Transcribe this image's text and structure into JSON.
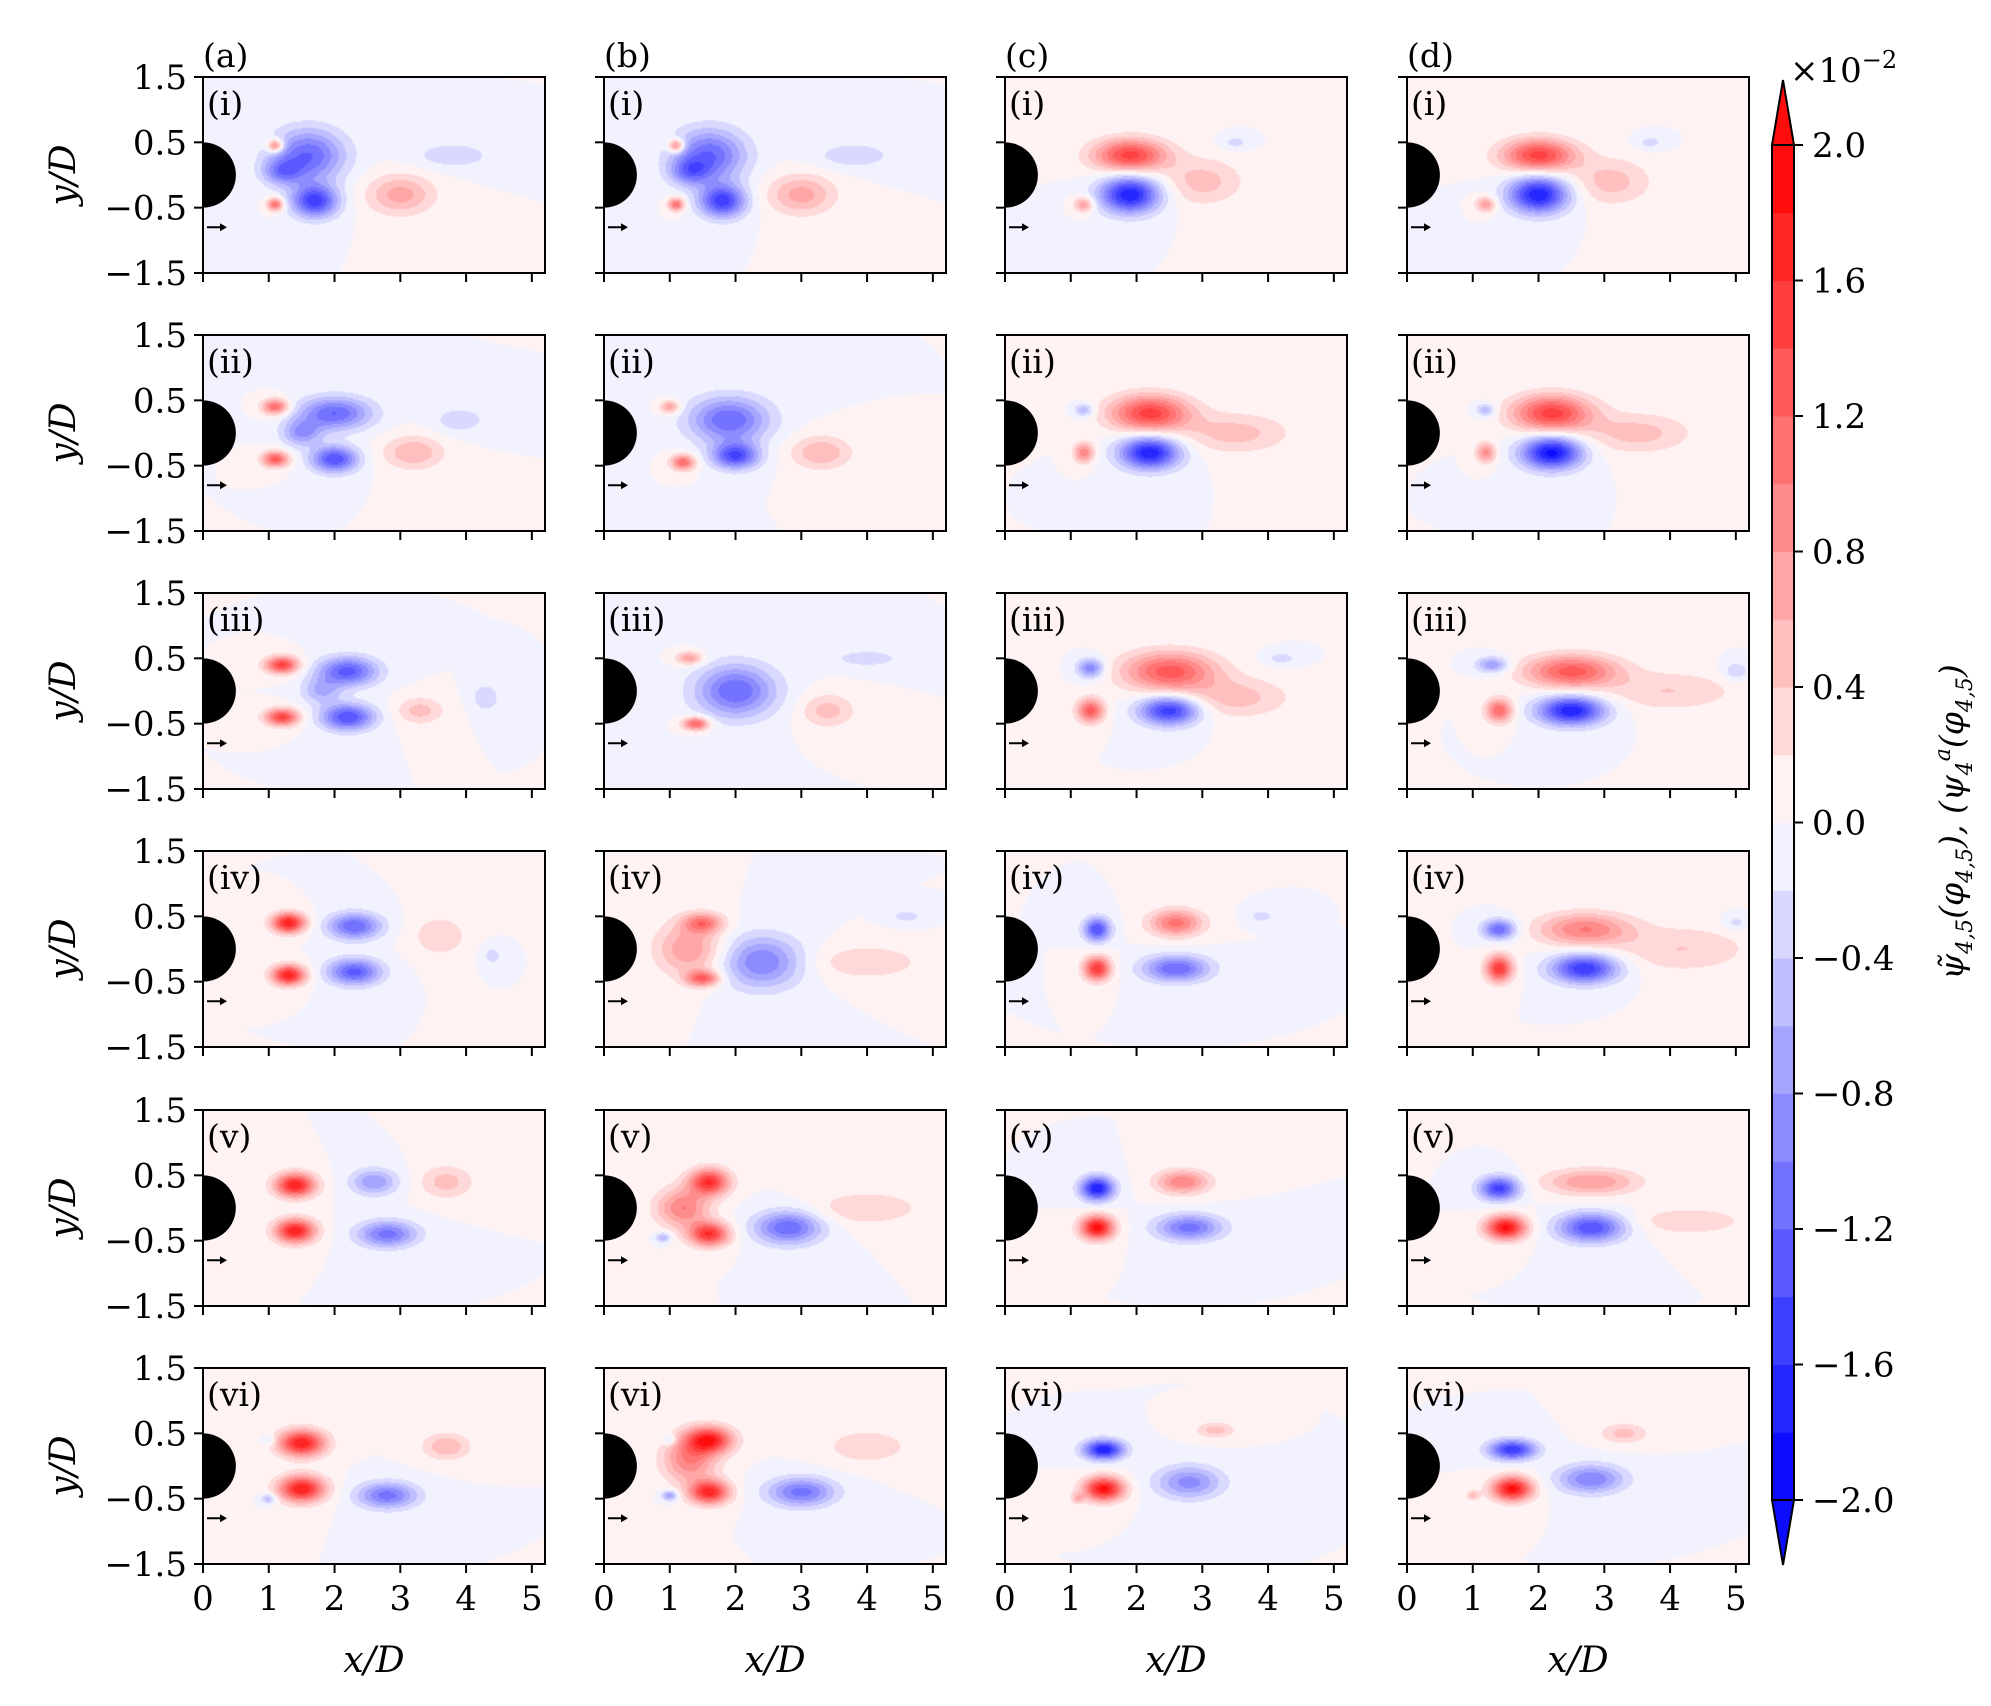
{
  "chart_data": {
    "type": "contour",
    "layout": "6 rows x 4 columns of filled-contour panels",
    "xlabel": "x/D",
    "ylabel": "y/D",
    "xlim": [
      0,
      5.2
    ],
    "ylim": [
      -1.5,
      1.5
    ],
    "xticks": [
      "0",
      "1",
      "2",
      "3",
      "4",
      "5"
    ],
    "yticks": [
      "1.5",
      "0.5",
      "−0.5",
      "−1.5"
    ],
    "column_labels": [
      "(a)",
      "(b)",
      "(c)",
      "(d)"
    ],
    "row_labels": [
      "(i)",
      "(ii)",
      "(iii)",
      "(iv)",
      "(v)",
      "(vi)"
    ],
    "cylinder": {
      "center_x": 0,
      "center_y": 0,
      "radius": 0.5
    },
    "colorbar": {
      "label": "ψ̃_{4,5}(φ_{4,5}),  (ψ_4)^a(φ_{4,5})",
      "label_left": "ψ̃",
      "label_sub": "4,5",
      "label_rest": "(φ",
      "label_rest_sub": "4,5",
      "label_mid": "),  (ψ",
      "label_mid_sub": "4",
      "label_mid_sup": "a",
      "label_end": "(φ",
      "label_end_sub": "4,5",
      "label_close": ")",
      "multiplier_base": "×10",
      "multiplier_exp": "−2",
      "ticks": [
        "2.0",
        "1.6",
        "1.2",
        "0.8",
        "0.4",
        "0.0",
        "−0.4",
        "−0.8",
        "−1.2",
        "−1.6",
        "−2.0"
      ],
      "range": [
        -2.0,
        2.0
      ],
      "extend": "both",
      "low_color": "#0000ff",
      "mid_color": "#ffffff",
      "high_color": "#ff0000"
    },
    "approximate_structures_note": "Each blob: x, y in D; amplitude in colorbar units (x10^-2); rx, ry in D.",
    "panels": [
      [
        [
          [
            1.1,
            0.45,
            1.2,
            0.12,
            0.1
          ],
          [
            1.1,
            -0.45,
            1.2,
            0.12,
            0.1
          ],
          [
            1.6,
            0.3,
            -1.2,
            0.55,
            0.4
          ],
          [
            1.7,
            -0.4,
            -1.5,
            0.35,
            0.25
          ],
          [
            1.2,
            0.05,
            -0.8,
            0.3,
            0.2
          ],
          [
            3.0,
            -0.3,
            0.7,
            0.5,
            0.3
          ],
          [
            3.8,
            0.3,
            -0.35,
            0.6,
            0.2
          ]
        ],
        [
          [
            1.1,
            0.45,
            1.2,
            0.12,
            0.1
          ],
          [
            1.1,
            -0.45,
            1.2,
            0.12,
            0.1
          ],
          [
            1.6,
            0.3,
            -1.2,
            0.55,
            0.4
          ],
          [
            1.8,
            -0.4,
            -1.5,
            0.35,
            0.25
          ],
          [
            1.3,
            0.05,
            -0.8,
            0.3,
            0.2
          ],
          [
            3.0,
            -0.3,
            0.7,
            0.5,
            0.3
          ],
          [
            3.8,
            0.3,
            -0.35,
            0.6,
            0.2
          ]
        ],
        [
          [
            1.2,
            -0.45,
            0.8,
            0.15,
            0.12
          ],
          [
            1.9,
            0.3,
            1.5,
            0.55,
            0.25
          ],
          [
            1.9,
            -0.3,
            -1.8,
            0.45,
            0.28
          ],
          [
            3.0,
            -0.1,
            0.5,
            0.6,
            0.35
          ],
          [
            3.5,
            0.5,
            -0.3,
            0.2,
            0.1
          ]
        ],
        [
          [
            1.2,
            -0.45,
            0.8,
            0.15,
            0.12
          ],
          [
            2.0,
            0.3,
            1.5,
            0.55,
            0.25
          ],
          [
            2.0,
            -0.3,
            -1.8,
            0.45,
            0.28
          ],
          [
            3.1,
            -0.1,
            0.5,
            0.6,
            0.35
          ],
          [
            3.7,
            0.5,
            -0.3,
            0.2,
            0.1
          ]
        ]
      ],
      [
        [
          [
            1.1,
            0.4,
            1.2,
            0.2,
            0.12
          ],
          [
            1.1,
            -0.4,
            1.3,
            0.2,
            0.12
          ],
          [
            2.0,
            0.3,
            -1.2,
            0.55,
            0.25
          ],
          [
            2.0,
            -0.4,
            -1.4,
            0.35,
            0.2
          ],
          [
            1.5,
            0.0,
            -0.8,
            0.3,
            0.2
          ],
          [
            3.2,
            -0.3,
            0.6,
            0.45,
            0.25
          ],
          [
            3.9,
            0.2,
            -0.35,
            0.4,
            0.2
          ]
        ],
        [
          [
            1.0,
            0.4,
            0.8,
            0.15,
            0.1
          ],
          [
            1.2,
            -0.45,
            1.2,
            0.18,
            0.12
          ],
          [
            1.9,
            0.2,
            -1.2,
            0.6,
            0.35
          ],
          [
            2.0,
            -0.35,
            -1.4,
            0.35,
            0.2
          ],
          [
            3.3,
            -0.3,
            0.6,
            0.45,
            0.25
          ]
        ],
        [
          [
            1.2,
            -0.3,
            1.0,
            0.15,
            0.15
          ],
          [
            1.2,
            0.35,
            -0.6,
            0.15,
            0.1
          ],
          [
            2.2,
            0.3,
            1.5,
            0.6,
            0.28
          ],
          [
            2.2,
            -0.3,
            -1.8,
            0.45,
            0.25
          ],
          [
            3.5,
            0.0,
            0.5,
            0.8,
            0.3
          ]
        ],
        [
          [
            1.2,
            -0.3,
            0.9,
            0.15,
            0.15
          ],
          [
            1.2,
            0.35,
            -0.6,
            0.15,
            0.1
          ],
          [
            2.2,
            0.3,
            1.5,
            0.6,
            0.28
          ],
          [
            2.2,
            -0.3,
            -1.9,
            0.45,
            0.25
          ],
          [
            3.5,
            0.0,
            0.5,
            0.8,
            0.3
          ]
        ]
      ],
      [
        [
          [
            1.2,
            0.4,
            1.5,
            0.25,
            0.13
          ],
          [
            1.2,
            -0.4,
            1.5,
            0.25,
            0.13
          ],
          [
            2.2,
            0.3,
            -1.3,
            0.45,
            0.22
          ],
          [
            2.2,
            -0.4,
            -1.4,
            0.4,
            0.2
          ],
          [
            1.8,
            0.0,
            -0.6,
            0.3,
            0.2
          ],
          [
            3.3,
            -0.3,
            0.5,
            0.35,
            0.2
          ],
          [
            4.3,
            -0.1,
            -0.4,
            0.2,
            0.2
          ]
        ],
        [
          [
            1.3,
            0.5,
            0.8,
            0.2,
            0.1
          ],
          [
            1.4,
            -0.5,
            1.3,
            0.2,
            0.1
          ],
          [
            2.0,
            0.0,
            -1.2,
            0.6,
            0.4
          ],
          [
            3.4,
            -0.3,
            0.5,
            0.4,
            0.25
          ],
          [
            4.0,
            0.5,
            -0.3,
            0.6,
            0.15
          ]
        ],
        [
          [
            1.3,
            -0.3,
            1.3,
            0.2,
            0.18
          ],
          [
            1.3,
            0.35,
            -1.0,
            0.2,
            0.15
          ],
          [
            2.5,
            0.3,
            1.3,
            0.7,
            0.3
          ],
          [
            2.5,
            -0.3,
            -1.6,
            0.45,
            0.22
          ],
          [
            3.5,
            -0.1,
            0.5,
            0.8,
            0.3
          ],
          [
            4.2,
            0.5,
            -0.3,
            0.25,
            0.1
          ]
        ],
        [
          [
            1.4,
            -0.3,
            1.2,
            0.2,
            0.18
          ],
          [
            1.3,
            0.4,
            -0.8,
            0.25,
            0.12
          ],
          [
            2.5,
            0.3,
            1.3,
            0.7,
            0.25
          ],
          [
            2.5,
            -0.3,
            -1.8,
            0.5,
            0.22
          ],
          [
            4.0,
            0.0,
            0.4,
            1.0,
            0.3
          ],
          [
            5.0,
            0.3,
            -0.4,
            0.2,
            0.15
          ]
        ]
      ],
      [
        [
          [
            1.3,
            0.4,
            1.8,
            0.25,
            0.15
          ],
          [
            1.3,
            -0.4,
            1.8,
            0.25,
            0.15
          ],
          [
            2.3,
            0.35,
            -1.2,
            0.4,
            0.2
          ],
          [
            2.3,
            -0.35,
            -1.3,
            0.4,
            0.2
          ],
          [
            3.6,
            0.2,
            0.4,
            0.4,
            0.3
          ],
          [
            4.4,
            -0.1,
            -0.3,
            0.15,
            0.15
          ]
        ],
        [
          [
            1.3,
            0.0,
            0.8,
            0.5,
            0.4
          ],
          [
            1.5,
            0.4,
            1.0,
            0.3,
            0.15
          ],
          [
            1.5,
            -0.45,
            1.2,
            0.25,
            0.12
          ],
          [
            2.4,
            -0.2,
            -1.0,
            0.6,
            0.4
          ],
          [
            4.0,
            -0.2,
            0.4,
            0.8,
            0.25
          ],
          [
            4.6,
            0.5,
            -0.3,
            0.25,
            0.1
          ]
        ],
        [
          [
            1.4,
            -0.3,
            1.6,
            0.2,
            0.18
          ],
          [
            1.4,
            0.3,
            -1.4,
            0.2,
            0.18
          ],
          [
            2.6,
            0.4,
            1.1,
            0.4,
            0.2
          ],
          [
            2.6,
            -0.3,
            -1.2,
            0.5,
            0.2
          ],
          [
            3.9,
            0.5,
            -0.3,
            0.2,
            0.1
          ]
        ],
        [
          [
            1.4,
            -0.3,
            1.6,
            0.2,
            0.2
          ],
          [
            1.4,
            0.3,
            -1.2,
            0.25,
            0.15
          ],
          [
            2.7,
            0.3,
            1.0,
            0.7,
            0.25
          ],
          [
            2.7,
            -0.3,
            -1.6,
            0.5,
            0.22
          ],
          [
            4.2,
            0.0,
            0.4,
            1.0,
            0.35
          ],
          [
            5.0,
            0.4,
            -0.3,
            0.2,
            0.12
          ]
        ]
      ],
      [
        [
          [
            1.4,
            0.35,
            1.8,
            0.3,
            0.18
          ],
          [
            1.4,
            -0.35,
            1.8,
            0.3,
            0.18
          ],
          [
            2.6,
            0.4,
            -0.8,
            0.35,
            0.2
          ],
          [
            2.8,
            -0.4,
            -1.1,
            0.45,
            0.2
          ],
          [
            3.7,
            0.4,
            0.5,
            0.4,
            0.25
          ]
        ],
        [
          [
            1.2,
            0.0,
            1.0,
            0.4,
            0.3
          ],
          [
            1.6,
            0.4,
            1.6,
            0.3,
            0.2
          ],
          [
            1.6,
            -0.4,
            1.6,
            0.3,
            0.18
          ],
          [
            2.8,
            -0.3,
            -1.2,
            0.5,
            0.25
          ],
          [
            0.9,
            -0.45,
            -0.6,
            0.12,
            0.08
          ],
          [
            4.0,
            0.0,
            0.4,
            0.8,
            0.25
          ]
        ],
        [
          [
            1.4,
            0.3,
            -1.8,
            0.25,
            0.18
          ],
          [
            1.4,
            -0.3,
            1.9,
            0.25,
            0.18
          ],
          [
            2.7,
            0.4,
            1.0,
            0.4,
            0.18
          ],
          [
            2.8,
            -0.3,
            -1.1,
            0.5,
            0.2
          ]
        ],
        [
          [
            1.4,
            0.3,
            -1.5,
            0.3,
            0.18
          ],
          [
            1.5,
            -0.3,
            1.9,
            0.3,
            0.18
          ],
          [
            2.8,
            0.4,
            0.8,
            0.7,
            0.2
          ],
          [
            2.8,
            -0.3,
            -1.4,
            0.5,
            0.22
          ],
          [
            4.3,
            -0.2,
            0.4,
            0.8,
            0.2
          ]
        ]
      ],
      [
        [
          [
            1.5,
            0.35,
            1.8,
            0.35,
            0.2
          ],
          [
            1.5,
            -0.35,
            1.8,
            0.35,
            0.2
          ],
          [
            1.0,
            -0.5,
            -0.6,
            0.12,
            0.08
          ],
          [
            1.0,
            0.4,
            -0.4,
            0.1,
            0.08
          ],
          [
            2.8,
            -0.45,
            -1.1,
            0.45,
            0.2
          ],
          [
            3.7,
            0.3,
            0.6,
            0.35,
            0.2
          ]
        ],
        [
          [
            1.3,
            0.1,
            1.0,
            0.4,
            0.35
          ],
          [
            1.6,
            0.4,
            1.7,
            0.35,
            0.2
          ],
          [
            1.6,
            -0.4,
            1.7,
            0.3,
            0.18
          ],
          [
            1.0,
            -0.45,
            -0.8,
            0.12,
            0.08
          ],
          [
            1.0,
            0.4,
            -0.5,
            0.1,
            0.08
          ],
          [
            3.0,
            -0.4,
            -1.1,
            0.5,
            0.22
          ],
          [
            4.0,
            0.3,
            0.4,
            0.6,
            0.25
          ]
        ],
        [
          [
            1.5,
            0.25,
            -1.8,
            0.3,
            0.15
          ],
          [
            1.5,
            -0.35,
            1.9,
            0.3,
            0.18
          ],
          [
            1.1,
            -0.5,
            0.5,
            0.1,
            0.08
          ],
          [
            2.8,
            -0.25,
            -0.9,
            0.5,
            0.25
          ],
          [
            3.2,
            0.55,
            0.5,
            0.3,
            0.12
          ]
        ],
        [
          [
            1.6,
            0.25,
            -1.6,
            0.35,
            0.15
          ],
          [
            1.6,
            -0.35,
            1.9,
            0.3,
            0.18
          ],
          [
            1.0,
            -0.45,
            0.5,
            0.1,
            0.08
          ],
          [
            2.8,
            -0.2,
            -1.0,
            0.5,
            0.22
          ],
          [
            3.3,
            0.5,
            0.5,
            0.35,
            0.15
          ]
        ]
      ]
    ]
  }
}
